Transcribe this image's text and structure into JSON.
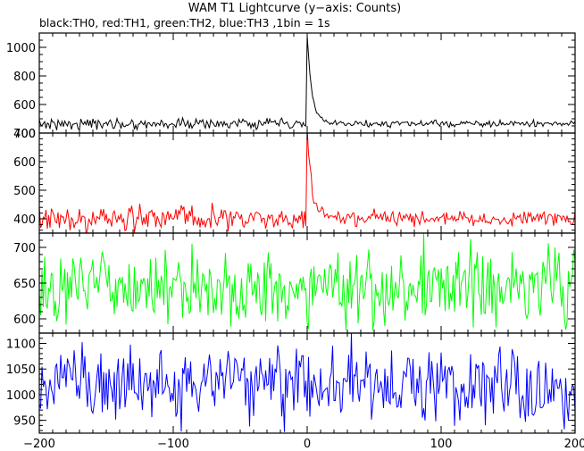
{
  "chart_data": {
    "type": "line",
    "title": "WAM T1 Lightcurve (y−axis: Counts)",
    "subtitle": "black:TH0, red:TH1, green:TH2, blue:TH3 ,1bin = 1s",
    "xlim": [
      -200,
      200
    ],
    "x_ticks": [
      -200,
      -100,
      0,
      100,
      200
    ],
    "x_tick_labels": [
      "−200",
      "−100",
      "0",
      "100",
      "200"
    ],
    "bin_seconds": 1,
    "panels": [
      {
        "band": "TH0",
        "color": "#000000",
        "ylim": [
          400,
          1100
        ],
        "y_ticks": [
          400,
          600,
          800,
          1000
        ],
        "y_tick_labels": [
          "400",
          "600",
          "800",
          "1000"
        ],
        "y_minor_step": 50,
        "baseline": 465,
        "noise": 18,
        "anomalies": [
          {
            "x": -12,
            "value": 435
          }
        ],
        "peak": {
          "x": 0,
          "value": 1090
        },
        "decay_seconds": 3.5
      },
      {
        "band": "TH1",
        "color": "#ff0000",
        "ylim": [
          350,
          700
        ],
        "y_ticks": [
          400,
          500,
          600,
          700
        ],
        "y_tick_labels": [
          "400",
          "500",
          "600",
          "700"
        ],
        "y_minor_step": 20,
        "baseline": 400,
        "noise": 22,
        "anomalies": [],
        "peak": {
          "x": 0,
          "value": 700
        },
        "decay_seconds": 3.5
      },
      {
        "band": "TH2",
        "color": "#00ff00",
        "ylim": [
          580,
          720
        ],
        "y_ticks": [
          600,
          650,
          700
        ],
        "y_tick_labels": [
          "600",
          "650",
          "700"
        ],
        "y_minor_step": 10,
        "baseline": 645,
        "noise": 27,
        "anomalies": [],
        "peak": null,
        "decay_seconds": 0
      },
      {
        "band": "TH3",
        "color": "#0000ff",
        "ylim": [
          925,
          1120
        ],
        "y_ticks": [
          950,
          1000,
          1050,
          1100
        ],
        "y_tick_labels": [
          "950",
          "1000",
          "1050",
          "1100"
        ],
        "y_minor_step": 10,
        "baseline": 1020,
        "noise": 38,
        "anomalies": [],
        "peak": null,
        "decay_seconds": 0
      }
    ]
  }
}
